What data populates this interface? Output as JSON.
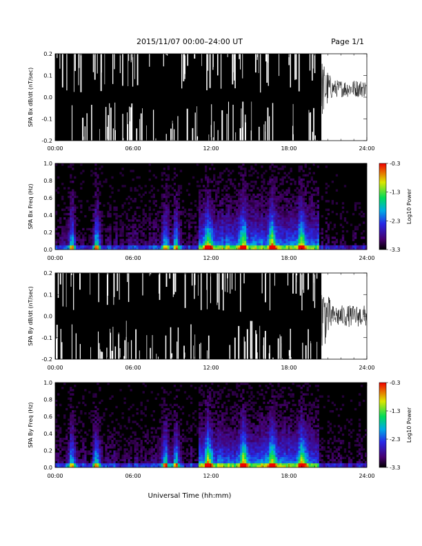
{
  "header": {
    "title": "2015/11/07  00:00–24:00 UT",
    "page": "Page 1/1"
  },
  "x_axis": {
    "label": "Universal Time (hh:mm)",
    "ticks": [
      "00:00",
      "06:00",
      "12:00",
      "18:00",
      "24:00"
    ],
    "range_hours": [
      0,
      24
    ]
  },
  "colorbar": {
    "label": "Log10 Power",
    "ticks": [
      "-0.3",
      "-1.3",
      "-2.3",
      "-3.3"
    ],
    "range": [
      -3.3,
      -0.3
    ]
  },
  "chart_data": [
    {
      "type": "line",
      "ylabel": "SPA Bx dB/dt (nT/sec)",
      "xlim": [
        0,
        24
      ],
      "ylim": [
        -0.2,
        0.2
      ],
      "yticks": [
        "0.2",
        "0.1",
        "0.0",
        "-0.1",
        "-0.2"
      ],
      "quiet_start_hour": 20.5,
      "quiet_amplitude": 0.04,
      "quiet_offset": 0.04
    },
    {
      "type": "heatmap",
      "ylabel": "SPA Bx Freq (Hz)",
      "xlim": [
        0,
        24
      ],
      "ylim": [
        0,
        1.0
      ],
      "yticks": [
        "1.0",
        "0.8",
        "0.6",
        "0.4",
        "0.2",
        "0.0"
      ],
      "activity_bursts_hours": [
        1.3,
        3.2,
        8.5,
        9.3,
        11.8,
        14.5,
        16.7,
        19.0
      ]
    },
    {
      "type": "line",
      "ylabel": "SPA By dB/dt (nT/sec)",
      "xlim": [
        0,
        24
      ],
      "ylim": [
        -0.2,
        0.2
      ],
      "yticks": [
        "0.2",
        "0.1",
        "0.0",
        "-0.1",
        "-0.2"
      ],
      "quiet_start_hour": 20.5,
      "quiet_amplitude": 0.05,
      "quiet_offset": 0.0
    },
    {
      "type": "heatmap",
      "ylabel": "SPA By Freq (Hz)",
      "xlim": [
        0,
        24
      ],
      "ylim": [
        0,
        1.0
      ],
      "yticks": [
        "1.0",
        "0.8",
        "0.6",
        "0.4",
        "0.2",
        "0.0"
      ],
      "activity_bursts_hours": [
        1.3,
        3.2,
        8.5,
        9.3,
        11.8,
        14.5,
        16.7,
        19.0
      ]
    }
  ]
}
